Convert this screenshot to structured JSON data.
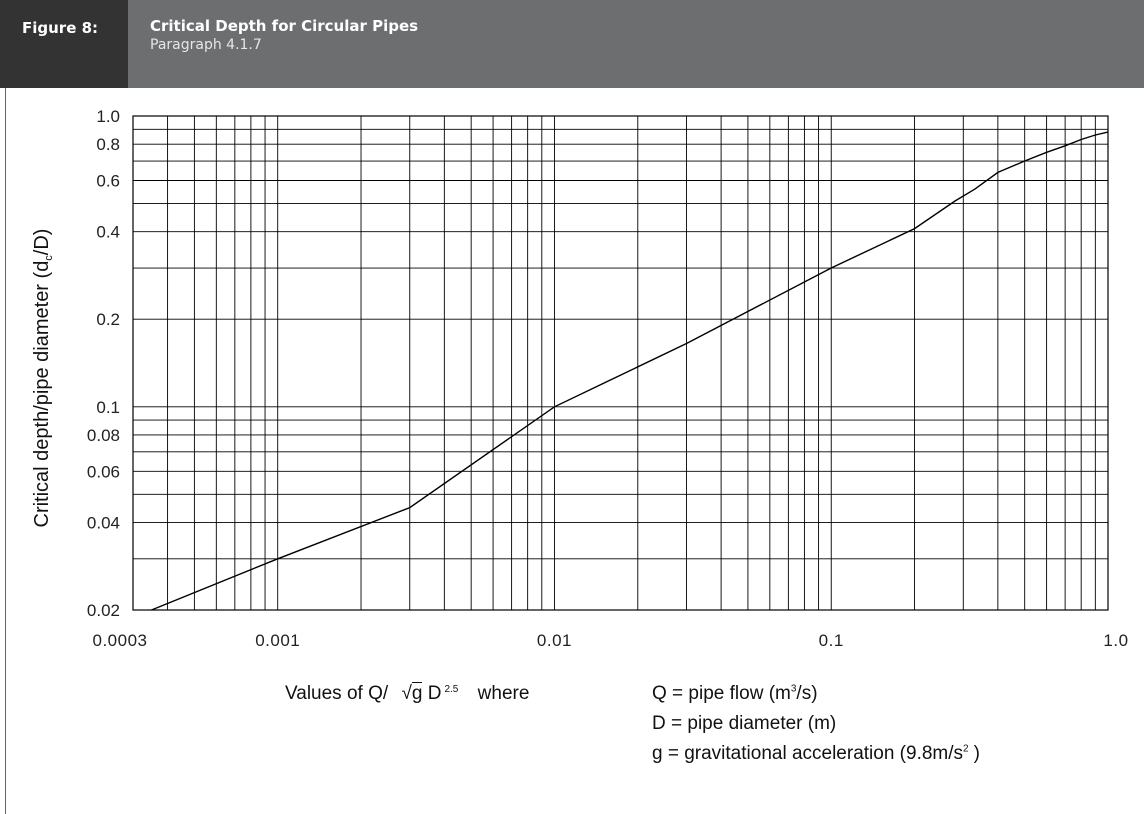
{
  "header": {
    "figure_label": "Figure 8:",
    "title": "Critical Depth for Circular Pipes",
    "subtitle": "Paragraph 4.1.7"
  },
  "colors": {
    "label_bg": "#333333",
    "title_bg": "#6d6e70",
    "curve": "#000000",
    "grid": "#000000"
  },
  "caption": {
    "prefix": "Values of Q/",
    "sqrt_symbol": "√",
    "g": "g",
    "D": "D",
    "exponent": "2.5",
    "where": "where",
    "line1_prefix": "Q = pipe flow (m",
    "line1_exp": "3",
    "line1_suffix": "/s)",
    "line2": "D = pipe diameter (m)",
    "line3_prefix": "g = gravitational acceleration (9.8m/s",
    "line3_exp": "2",
    "line3_suffix": ")"
  },
  "chart_data": {
    "type": "line",
    "x_scale": "log",
    "y_scale": "log",
    "xlim": [
      0.0003,
      1.0
    ],
    "ylim": [
      0.02,
      1.0
    ],
    "xlabel": "Values of Q/ √g D 2.5",
    "ylabel_prefix": "Critical depth/pipe diameter (d",
    "ylabel_sub": "c",
    "ylabel_suffix": "/D)",
    "x_ticks": [
      {
        "value": 0.0003,
        "label": "0.0003"
      },
      {
        "value": 0.001,
        "label": "0.001"
      },
      {
        "value": 0.01,
        "label": "0.01"
      },
      {
        "value": 0.1,
        "label": "0.1"
      },
      {
        "value": 1.0,
        "label": "1.0"
      }
    ],
    "y_ticks": [
      {
        "value": 1.0,
        "label": "1.0"
      },
      {
        "value": 0.8,
        "label": "0.8"
      },
      {
        "value": 0.6,
        "label": "0.6"
      },
      {
        "value": 0.4,
        "label": "0.4"
      },
      {
        "value": 0.2,
        "label": "0.2"
      },
      {
        "value": 0.1,
        "label": "0.1"
      },
      {
        "value": 0.08,
        "label": "0.08"
      },
      {
        "value": 0.06,
        "label": "0.06"
      },
      {
        "value": 0.04,
        "label": "0.04"
      },
      {
        "value": 0.02,
        "label": "0.02"
      }
    ],
    "x_grid": [
      0.0004,
      0.0005,
      0.0006,
      0.0007,
      0.0008,
      0.0009,
      0.001,
      0.002,
      0.003,
      0.004,
      0.005,
      0.006,
      0.007,
      0.008,
      0.009,
      0.01,
      0.02,
      0.03,
      0.04,
      0.05,
      0.06,
      0.07,
      0.08,
      0.09,
      0.1,
      0.2,
      0.3,
      0.4,
      0.5,
      0.6,
      0.7,
      0.8,
      0.9,
      1.0
    ],
    "y_grid": [
      0.02,
      0.03,
      0.04,
      0.05,
      0.06,
      0.07,
      0.08,
      0.09,
      0.1,
      0.2,
      0.3,
      0.4,
      0.5,
      0.6,
      0.7,
      0.8,
      0.9,
      1.0
    ],
    "grid": true,
    "series": [
      {
        "x": [
          0.00035,
          0.001,
          0.003,
          0.01,
          0.03,
          0.1,
          0.2,
          0.28,
          0.33,
          0.4,
          0.5,
          0.6,
          0.7,
          0.8,
          0.9,
          1.0
        ],
        "y": [
          0.02,
          0.03,
          0.045,
          0.1,
          0.165,
          0.3,
          0.41,
          0.51,
          0.56,
          0.64,
          0.7,
          0.75,
          0.79,
          0.83,
          0.86,
          0.88
        ]
      }
    ]
  }
}
